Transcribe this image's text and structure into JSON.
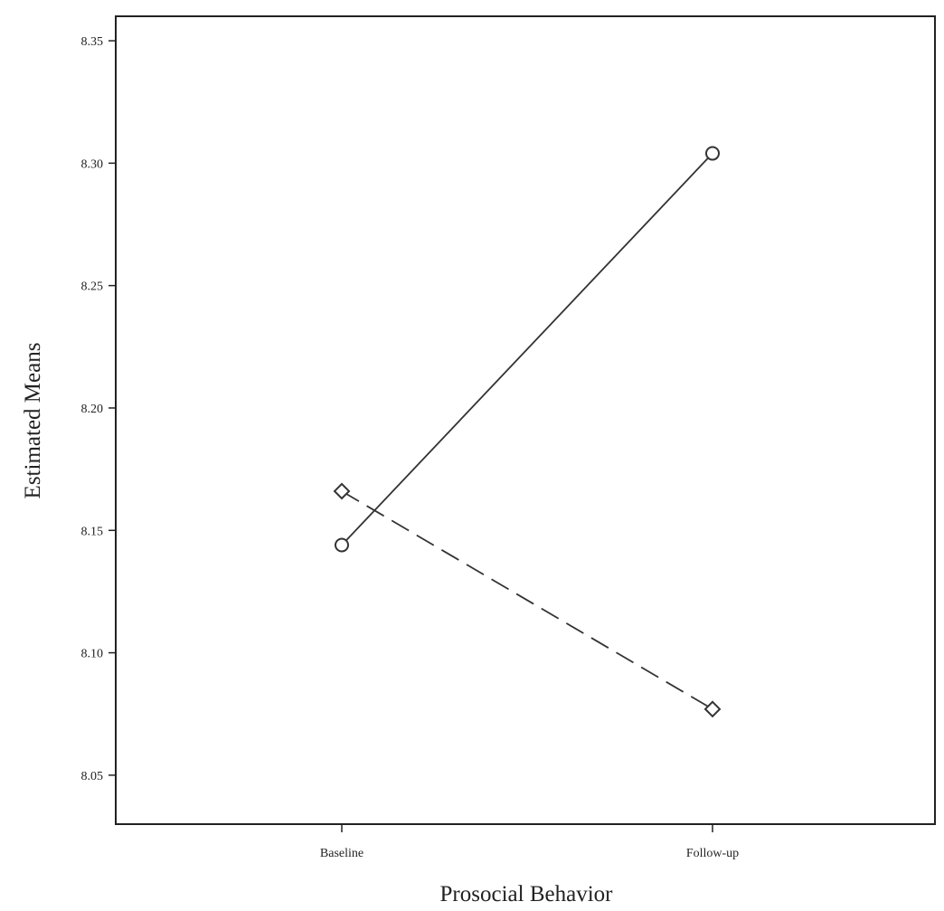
{
  "chart_data": {
    "type": "line",
    "title": "",
    "xlabel": "Prosocial Behavior",
    "ylabel": "Estimated Means",
    "categories": [
      "Baseline",
      "Follow-up"
    ],
    "yticks": [
      "8.05",
      "8.10",
      "8.15",
      "8.20",
      "8.25",
      "8.30",
      "8.35"
    ],
    "ylim": [
      8.03,
      8.36
    ],
    "grid": false,
    "legend": "none",
    "series": [
      {
        "values": [
          8.144,
          8.304
        ],
        "line_style": "solid",
        "marker": "circle",
        "color": "#333333"
      },
      {
        "values": [
          8.166,
          8.077
        ],
        "line_style": "dashed",
        "marker": "diamond",
        "color": "#333333"
      }
    ]
  }
}
